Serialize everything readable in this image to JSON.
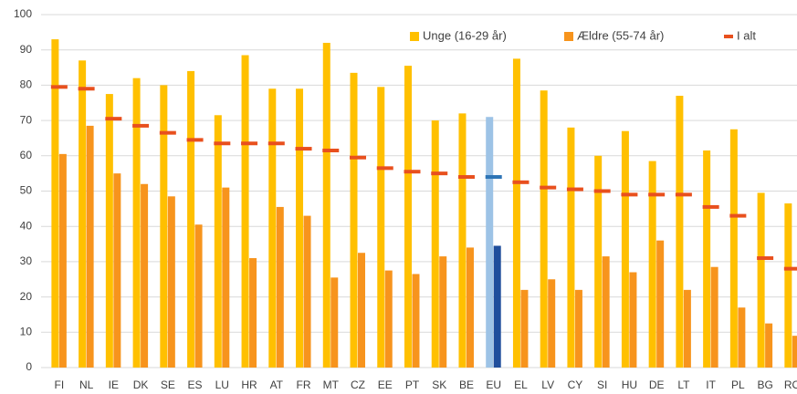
{
  "chart_data": {
    "type": "bar",
    "categories": [
      "FI",
      "NL",
      "IE",
      "DK",
      "SE",
      "ES",
      "LU",
      "HR",
      "AT",
      "FR",
      "MT",
      "CZ",
      "EE",
      "PT",
      "SK",
      "BE",
      "EU",
      "EL",
      "LV",
      "CY",
      "SI",
      "HU",
      "DE",
      "LT",
      "IT",
      "PL",
      "BG",
      "RO"
    ],
    "series": [
      {
        "name": "Unge (16-29 år)",
        "color": "#ffc000",
        "highlight_color": "#9dc3e6",
        "mark": "bar",
        "values": [
          93,
          87,
          77.5,
          82,
          80,
          84,
          71.5,
          88.5,
          79,
          79,
          92,
          83.5,
          79.5,
          85.5,
          70,
          72,
          71,
          87.5,
          78.5,
          68,
          60,
          67,
          58.5,
          77,
          61.5,
          67.5,
          49.5,
          46.5
        ]
      },
      {
        "name": "Ældre (55-74 år)",
        "color": "#f7941d",
        "highlight_color": "#1f4e9c",
        "mark": "bar",
        "values": [
          60.5,
          68.5,
          55,
          52,
          48.5,
          40.5,
          51,
          31,
          45.5,
          43,
          25.5,
          32.5,
          27.5,
          26.5,
          31.5,
          34,
          34.5,
          22,
          25,
          22,
          31.5,
          27,
          36,
          22,
          28.5,
          17,
          12.5,
          9
        ]
      },
      {
        "name": "I alt",
        "color": "#e8501e",
        "highlight_color": "#2e75b6",
        "mark": "dash",
        "values": [
          79.5,
          79,
          70.5,
          68.5,
          66.5,
          64.5,
          63.5,
          63.5,
          63.5,
          62,
          61.5,
          59.5,
          56.5,
          55.5,
          55,
          54,
          54,
          52.5,
          51,
          50.5,
          50,
          49,
          49,
          49,
          45.5,
          43,
          31,
          28
        ]
      }
    ],
    "highlight_category": "EU",
    "ylim": [
      0,
      100
    ],
    "yticks": [
      0,
      10,
      20,
      30,
      40,
      50,
      60,
      70,
      80,
      90,
      100
    ],
    "grid": true,
    "legend": "top-right"
  }
}
